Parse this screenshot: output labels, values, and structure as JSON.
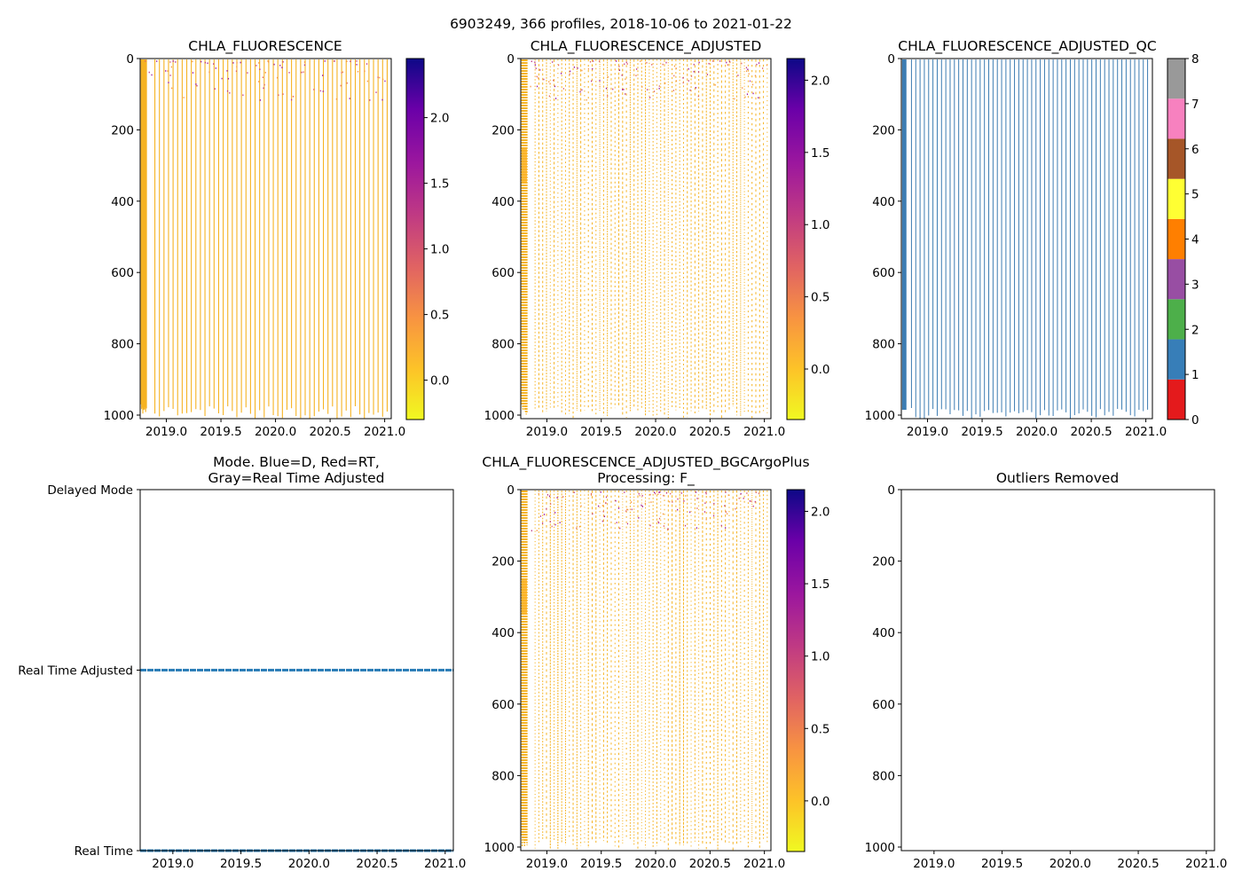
{
  "figure_title": "6903249, 366 profiles, 2018-10-06 to 2021-01-22",
  "colors": {
    "profile_color": "#f5b323",
    "qc_line_color": "#3c7cb2",
    "mode_line_color": "#2d7fb8",
    "axes_color": "#000000"
  },
  "chart_data": [
    {
      "id": "chla",
      "type": "heatmap",
      "title": "CHLA_FLUORESCENCE",
      "xlim": [
        2018.76,
        2021.06
      ],
      "xticks": [
        "2019.0",
        "2019.5",
        "2020.0",
        "2020.5",
        "2021.0"
      ],
      "ylim": [
        1010,
        0
      ],
      "yticks": [
        "0",
        "200",
        "400",
        "600",
        "800",
        "1000"
      ],
      "colorbar": {
        "colormap": "plasma_r",
        "range": [
          -0.3,
          2.45
        ],
        "ticks": [
          "0.0",
          "0.5",
          "1.0",
          "1.5",
          "2.0"
        ]
      },
      "profile_count": 366,
      "profile_depth_max": 1000,
      "typical_value": 0.0
    },
    {
      "id": "chla_adj",
      "type": "heatmap",
      "title": "CHLA_FLUORESCENCE_ADJUSTED",
      "xlim": [
        2018.76,
        2021.06
      ],
      "xticks": [
        "2019.0",
        "2019.5",
        "2020.0",
        "2020.5",
        "2021.0"
      ],
      "ylim": [
        1010,
        0
      ],
      "yticks": [
        "0",
        "200",
        "400",
        "600",
        "800",
        "1000"
      ],
      "colorbar": {
        "colormap": "plasma_r",
        "range": [
          -0.35,
          2.15
        ],
        "ticks": [
          "0.0",
          "0.5",
          "1.0",
          "1.5",
          "2.0"
        ]
      },
      "typical_value": 0.0
    },
    {
      "id": "chla_adj_qc",
      "type": "heatmap",
      "title": "CHLA_FLUORESCENCE_ADJUSTED_QC",
      "xlim": [
        2018.76,
        2021.06
      ],
      "xticks": [
        "2019.0",
        "2019.5",
        "2020.0",
        "2020.5",
        "2021.0"
      ],
      "ylim": [
        1010,
        0
      ],
      "yticks": [
        "0",
        "200",
        "400",
        "600",
        "800",
        "1000"
      ],
      "colorbar": {
        "colormap": "Set1",
        "range": [
          0,
          8
        ],
        "ticks": [
          "0",
          "1",
          "2",
          "3",
          "4",
          "5",
          "6",
          "7",
          "8"
        ],
        "colors": [
          "#e41a1c",
          "#377eb8",
          "#4daf4a",
          "#984ea3",
          "#ff7f00",
          "#ffff33",
          "#a65628",
          "#f781bf",
          "#999999"
        ]
      },
      "qc_value": 1
    },
    {
      "id": "mode",
      "type": "line",
      "title": "Mode. Blue=D, Red=RT,\nGray=Real Time Adjusted",
      "title_lines": [
        "Mode. Blue=D, Red=RT,",
        "Gray=Real Time Adjusted"
      ],
      "xlim": [
        2018.76,
        2021.06
      ],
      "xticks": [
        "2019.0",
        "2019.5",
        "2020.0",
        "2020.5",
        "2021.0"
      ],
      "ylim": [
        0,
        2
      ],
      "ytick_labels": [
        "Real Time",
        "Real Time Adjusted",
        "Delayed Mode"
      ],
      "series": [
        {
          "name": "Real Time",
          "y": 0,
          "x_range": [
            2018.76,
            2021.06
          ]
        },
        {
          "name": "Real Time Adjusted",
          "y": 1,
          "x_range": [
            2018.76,
            2021.06
          ]
        }
      ]
    },
    {
      "id": "chla_bgc",
      "type": "heatmap",
      "title": "CHLA_FLUORESCENCE_ADJUSTED_BGCArgoPlus\nProcessing: F_",
      "title_lines": [
        "CHLA_FLUORESCENCE_ADJUSTED_BGCArgoPlus",
        "Processing: F_"
      ],
      "xlim": [
        2018.76,
        2021.06
      ],
      "xticks": [
        "2019.0",
        "2019.5",
        "2020.0",
        "2020.5",
        "2021.0"
      ],
      "ylim": [
        1010,
        0
      ],
      "yticks": [
        "0",
        "200",
        "400",
        "600",
        "800",
        "1000"
      ],
      "colorbar": {
        "colormap": "plasma_r",
        "range": [
          -0.35,
          2.15
        ],
        "ticks": [
          "0.0",
          "0.5",
          "1.0",
          "1.5",
          "2.0"
        ]
      },
      "typical_value": 0.0
    },
    {
      "id": "outliers",
      "type": "scatter",
      "title": "Outliers Removed",
      "xlim": [
        2018.76,
        2021.06
      ],
      "xticks": [
        "2019.0",
        "2019.5",
        "2020.0",
        "2020.5",
        "2021.0"
      ],
      "ylim": [
        1010,
        0
      ],
      "yticks": [
        "0",
        "200",
        "400",
        "600",
        "800",
        "1000"
      ],
      "points": []
    }
  ]
}
